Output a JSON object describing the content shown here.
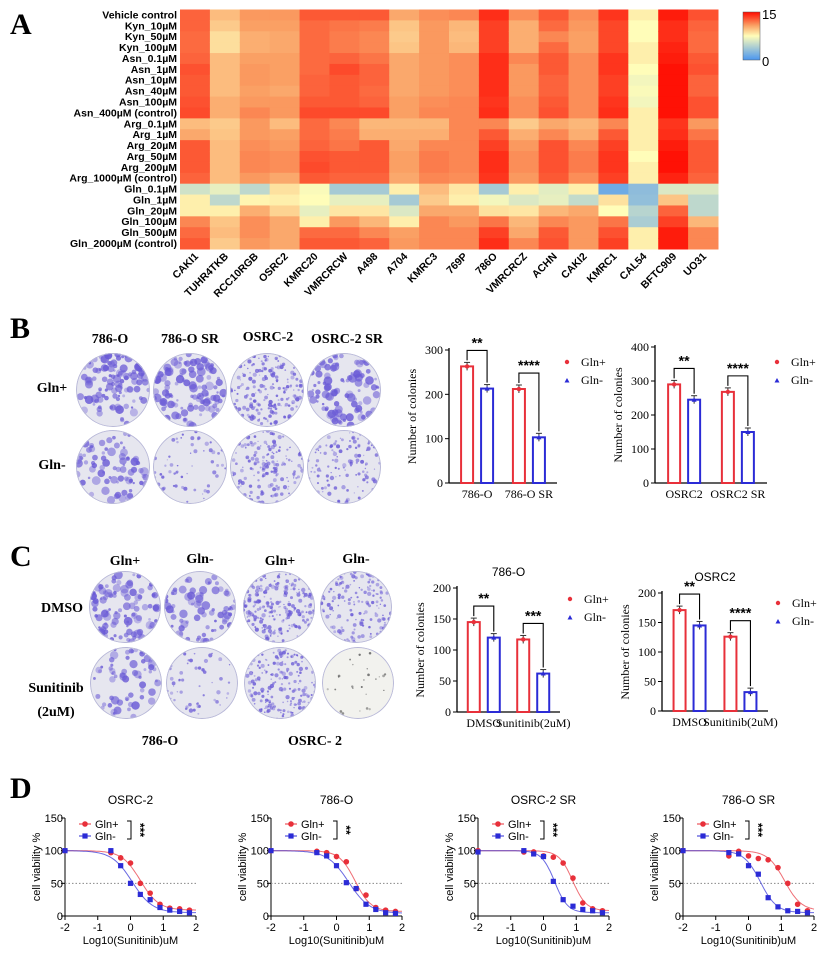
{
  "panel_labels": {
    "A": "A",
    "B": "B",
    "C": "C",
    "D": "D"
  },
  "chart_data": [
    {
      "id": "A",
      "type": "heatmap",
      "rows": [
        "Vehicle control",
        "Kyn_10µM",
        "Kyn_50µM",
        "Kyn_100µM",
        "Asn_0.1µM",
        "Asn_1µM",
        "Asn_10µM",
        "Asn_40µM",
        "Asn_100µM",
        "Asn_400µM (control)",
        "Arg_0.1µM",
        "Arg_1µM",
        "Arg_20µM",
        "Arg_50µM",
        "Arg_200µM",
        "Arg_1000µM (control)",
        "Gln_0.1µM",
        "Gln_1µM",
        "Gln_20µM",
        "Gln_100µM",
        "Gln_500µM",
        "Gln_2000µM (control)"
      ],
      "columns": [
        "CAKI1",
        "TUHR4TKB",
        "RCC10RGB",
        "OSRC2",
        "KMRC20",
        "VMRCRCW",
        "A498",
        "A704",
        "KMRC3",
        "769P",
        "786O",
        "VMRCRCZ",
        "ACHN",
        "CAKI2",
        "KMRC1",
        "CAL54",
        "BFTC909",
        "UO31"
      ],
      "values_by_column": [
        [
          12.5,
          12.5,
          12.3,
          12.3,
          12.5,
          13,
          12.8,
          12.8,
          13,
          13.2,
          9.8,
          10.5,
          12.8,
          12.8,
          12.8,
          12.5,
          5.5,
          8,
          8,
          11.5,
          12.3,
          12.8
        ],
        [
          9.8,
          9.3,
          8.6,
          8.6,
          9.8,
          9.8,
          9.8,
          9.8,
          10.3,
          10.3,
          9.3,
          9.5,
          9.8,
          9.8,
          9.8,
          9.8,
          6.5,
          4.8,
          8,
          9.5,
          9.8,
          9.3
        ],
        [
          11,
          10.8,
          10.3,
          10.3,
          10.8,
          11,
          11,
          10.8,
          11,
          11.5,
          11,
          11,
          11.3,
          11.5,
          11.5,
          11,
          4.8,
          7.8,
          10.3,
          11.3,
          11.3,
          11
        ],
        [
          11,
          10.8,
          10.5,
          10.5,
          10.8,
          10.8,
          10.8,
          10.5,
          11,
          11,
          9.8,
          10.8,
          11,
          11.3,
          11.3,
          10.5,
          8.5,
          8,
          9,
          10.5,
          10.5,
          10.5
        ],
        [
          12.8,
          12.3,
          12.3,
          12.3,
          12.3,
          12.3,
          12.5,
          12.5,
          12.8,
          13.2,
          12.3,
          12.3,
          12.5,
          13,
          13.2,
          12.8,
          7.3,
          7.5,
          6.5,
          8,
          12.3,
          12.8
        ],
        [
          12.8,
          12,
          11.8,
          11.8,
          12.5,
          13.2,
          12.8,
          12.8,
          12.8,
          13.2,
          11.5,
          11.8,
          12,
          12.8,
          12.8,
          12.5,
          3.8,
          6.5,
          8.3,
          11,
          12.3,
          12.8
        ],
        [
          12.8,
          11.8,
          11.5,
          11.5,
          12,
          12.5,
          12.5,
          12.3,
          12.5,
          13.2,
          10,
          10.3,
          12.8,
          12.8,
          12.8,
          12.5,
          3.8,
          6.5,
          8.3,
          10,
          11.5,
          12.5
        ],
        [
          10.5,
          9.5,
          9.3,
          9.5,
          10.5,
          10.5,
          10.5,
          10.5,
          10.8,
          10.8,
          10,
          10.3,
          10.5,
          10.8,
          10.8,
          10.5,
          8,
          3.8,
          6,
          8,
          10.8,
          11
        ],
        [
          11.3,
          11,
          11,
          11,
          11,
          11,
          11,
          11,
          11.3,
          11.5,
          10,
          10.3,
          11.5,
          11.8,
          11.8,
          11.5,
          9.8,
          9.3,
          10.5,
          11.5,
          11.5,
          11.5
        ],
        [
          11.5,
          10,
          9.8,
          10,
          11.3,
          11.3,
          11.3,
          11.3,
          11.5,
          11.5,
          11.5,
          11.5,
          11.5,
          11.5,
          11.5,
          11.3,
          8.3,
          8,
          10.5,
          11,
          11.5,
          11.5
        ],
        [
          14,
          13.5,
          13.5,
          13.5,
          14,
          14,
          14,
          14,
          13.8,
          14,
          11.5,
          12.8,
          13.5,
          14,
          14,
          13.8,
          3.8,
          7,
          8.5,
          12,
          13.5,
          14
        ],
        [
          11.3,
          10.3,
          10.3,
          10.3,
          11.5,
          11,
          11,
          11,
          11.3,
          11.3,
          9.3,
          10.3,
          11,
          11.3,
          11.3,
          11,
          8,
          6,
          8.3,
          10,
          10.5,
          11.5
        ],
        [
          12.8,
          12.3,
          11.5,
          12.3,
          12.8,
          12.8,
          12.5,
          12.5,
          12.8,
          13,
          10.5,
          11.5,
          13,
          13,
          13,
          12.8,
          6.3,
          6.5,
          10,
          11.5,
          12.8,
          13
        ],
        [
          11.3,
          11,
          10.8,
          10.8,
          11.3,
          11.3,
          11.3,
          11.3,
          11.3,
          11.3,
          10,
          10.3,
          11.5,
          11.8,
          11.8,
          11.3,
          8,
          5,
          10.5,
          11,
          11,
          11
        ],
        [
          13.8,
          13.3,
          13.3,
          13.3,
          13.8,
          13.8,
          13.5,
          13.5,
          13.8,
          14,
          11.5,
          12.8,
          13.5,
          13.8,
          13.8,
          13.5,
          1.5,
          8.5,
          7.5,
          12,
          13,
          13.5
        ],
        [
          8,
          7.5,
          7.5,
          8,
          8,
          7.5,
          7,
          7.3,
          7,
          8,
          8,
          8,
          8,
          7.5,
          8,
          8,
          2.8,
          3,
          4.5,
          4,
          8,
          8
        ],
        [
          14.5,
          14,
          14,
          14.3,
          14.5,
          14.8,
          14.8,
          14.8,
          14.8,
          14.8,
          13.8,
          14,
          14.5,
          14.8,
          14.8,
          14.3,
          6,
          9.5,
          12.5,
          13.5,
          14.5,
          14.5
        ],
        [
          13,
          12.5,
          12.3,
          12.3,
          12.8,
          13,
          12.5,
          12.5,
          13,
          13,
          11,
          12,
          12.8,
          12.8,
          12.8,
          12.5,
          6,
          4.8,
          4.8,
          10,
          11.5,
          11.5
        ]
      ],
      "colorbar": {
        "min": 0,
        "max": 15,
        "min_label": "0",
        "max_label": "15",
        "colors": [
          "#4a96f0",
          "#fffdb9",
          "#faa064",
          "#ff0a00"
        ]
      }
    },
    {
      "id": "B1",
      "type": "bar",
      "categories": [
        "786-O",
        "786-O SR"
      ],
      "series": [
        {
          "name": "Gln+",
          "values": [
            263,
            212
          ],
          "color": "#e8303a"
        },
        {
          "name": "Gln-",
          "values": [
            213,
            103
          ],
          "color": "#2b2bd6"
        }
      ],
      "significance": [
        "**",
        "****"
      ],
      "ylabel": "Number of colonies",
      "ylim": [
        0,
        300
      ],
      "yticks": [
        0,
        100,
        200,
        300
      ]
    },
    {
      "id": "B2",
      "type": "bar",
      "categories": [
        "OSRC2",
        "OSRC2 SR"
      ],
      "series": [
        {
          "name": "Gln+",
          "values": [
            290,
            268
          ],
          "color": "#e8303a"
        },
        {
          "name": "Gln-",
          "values": [
            245,
            150
          ],
          "color": "#2b2bd6"
        }
      ],
      "significance": [
        "**",
        "****"
      ],
      "ylabel": "Number of colonies",
      "ylim": [
        0,
        400
      ],
      "yticks": [
        0,
        100,
        200,
        300,
        400
      ]
    },
    {
      "id": "C1",
      "type": "bar",
      "title": "786-O",
      "categories": [
        "DMSO",
        "Sunitinib(2uM)"
      ],
      "series": [
        {
          "name": "Gln+",
          "values": [
            145,
            117
          ],
          "color": "#e8303a"
        },
        {
          "name": "Gln-",
          "values": [
            120,
            62
          ],
          "color": "#2b2bd6"
        }
      ],
      "significance": [
        "**",
        "***"
      ],
      "ylabel": "Number of colonies",
      "ylim": [
        0,
        200
      ],
      "yticks": [
        0,
        50,
        100,
        150,
        200
      ]
    },
    {
      "id": "C2",
      "type": "bar",
      "title": "OSRC2",
      "categories": [
        "DMSO",
        "Sunitinib(2uM)"
      ],
      "series": [
        {
          "name": "Gln+",
          "values": [
            171,
            126
          ],
          "color": "#e8303a"
        },
        {
          "name": "Gln-",
          "values": [
            145,
            32
          ],
          "color": "#2b2bd6"
        }
      ],
      "significance": [
        "**",
        "****"
      ],
      "ylabel": "Number of colonies",
      "ylim": [
        0,
        200
      ],
      "yticks": [
        0,
        50,
        100,
        150,
        200
      ]
    },
    {
      "id": "D1",
      "type": "scatter",
      "title": "OSRC-2",
      "x": [
        -2,
        -0.6,
        -0.3,
        0,
        0.3,
        0.6,
        0.9,
        1.2,
        1.5,
        1.8
      ],
      "series": [
        {
          "name": "Gln+",
          "values": [
            100,
            97,
            89,
            81,
            50,
            35,
            18,
            12,
            11,
            9
          ],
          "color": "#e8303a"
        },
        {
          "name": "Gln-",
          "values": [
            100,
            100,
            77,
            50,
            33,
            25,
            13,
            9,
            7,
            5
          ],
          "color": "#2b2bd6"
        }
      ],
      "significance": "***",
      "xlabel": "Log10(Sunitinib)uM",
      "ylabel": "cell viability %",
      "xlim": [
        -2,
        2
      ],
      "ylim": [
        0,
        150
      ],
      "xticks": [
        -2,
        -1,
        0,
        1,
        2
      ],
      "yticks": [
        0,
        50,
        100,
        150
      ],
      "reference_line": 50
    },
    {
      "id": "D2",
      "type": "scatter",
      "title": "786-O",
      "x": [
        -2,
        -0.6,
        -0.3,
        0,
        0.3,
        0.6,
        0.9,
        1.2,
        1.5,
        1.8
      ],
      "series": [
        {
          "name": "Gln+",
          "values": [
            100,
            99,
            97,
            91,
            83,
            42,
            32,
            13,
            9,
            7
          ],
          "color": "#e8303a"
        },
        {
          "name": "Gln-",
          "values": [
            100,
            97,
            92,
            77,
            51,
            42,
            18,
            10,
            5,
            4
          ],
          "color": "#2b2bd6"
        }
      ],
      "significance": "**",
      "xlabel": "Log10(Sunitinib)uM",
      "ylabel": "cell viability %",
      "xlim": [
        -2,
        2
      ],
      "ylim": [
        0,
        150
      ],
      "xticks": [
        -2,
        -1,
        0,
        1,
        2
      ],
      "yticks": [
        0,
        50,
        100,
        150
      ],
      "reference_line": 50
    },
    {
      "id": "D3",
      "type": "scatter",
      "title": "OSRC-2 SR",
      "x": [
        -2,
        -0.6,
        -0.3,
        0,
        0.3,
        0.6,
        0.9,
        1.2,
        1.5,
        1.8
      ],
      "series": [
        {
          "name": "Gln+",
          "values": [
            100,
            98,
            98,
            92,
            90,
            81,
            58,
            20,
            11,
            8
          ],
          "color": "#e8303a"
        },
        {
          "name": "Gln-",
          "values": [
            98,
            100,
            95,
            91,
            53,
            25,
            15,
            10,
            8,
            5
          ],
          "color": "#2b2bd6"
        }
      ],
      "significance": "***",
      "xlabel": "Log10(Sunitinib)uM",
      "ylabel": "cell viability %",
      "xlim": [
        -2,
        2
      ],
      "ylim": [
        0,
        150
      ],
      "xticks": [
        -2,
        -1,
        0,
        1,
        2
      ],
      "yticks": [
        0,
        50,
        100,
        150
      ],
      "reference_line": 50
    },
    {
      "id": "D4",
      "type": "scatter",
      "title": "786-O SR",
      "x": [
        -2,
        -0.6,
        -0.3,
        0,
        0.3,
        0.6,
        0.9,
        1.2,
        1.5,
        1.8
      ],
      "series": [
        {
          "name": "Gln+",
          "values": [
            100,
            92,
            99,
            92,
            88,
            86,
            74,
            50,
            18,
            8
          ],
          "color": "#e8303a"
        },
        {
          "name": "Gln-",
          "values": [
            100,
            97,
            95,
            77,
            64,
            28,
            14,
            8,
            7,
            5
          ],
          "color": "#2b2bd6"
        }
      ],
      "significance": "***",
      "xlabel": "Log10(Sunitinib)uM",
      "ylabel": "cell viability %",
      "xlim": [
        -2,
        2
      ],
      "ylim": [
        0,
        150
      ],
      "xticks": [
        -2,
        -1,
        0,
        1,
        2
      ],
      "yticks": [
        0,
        50,
        100,
        150
      ],
      "reference_line": 50
    }
  ],
  "panel_B_images": {
    "column_headers": [
      "786-O",
      "786-O SR",
      "OSRC-2",
      "OSRC-2 SR"
    ],
    "row_labels": [
      "Gln+",
      "Gln-"
    ]
  },
  "panel_C_images": {
    "column_headers": [
      "Gln+",
      "Gln-",
      "Gln+",
      "Gln-"
    ],
    "row_labels": [
      "DMSO",
      "Sunitinib",
      "(2uM)"
    ],
    "group_labels": [
      "786-O",
      "OSRC- 2"
    ]
  }
}
